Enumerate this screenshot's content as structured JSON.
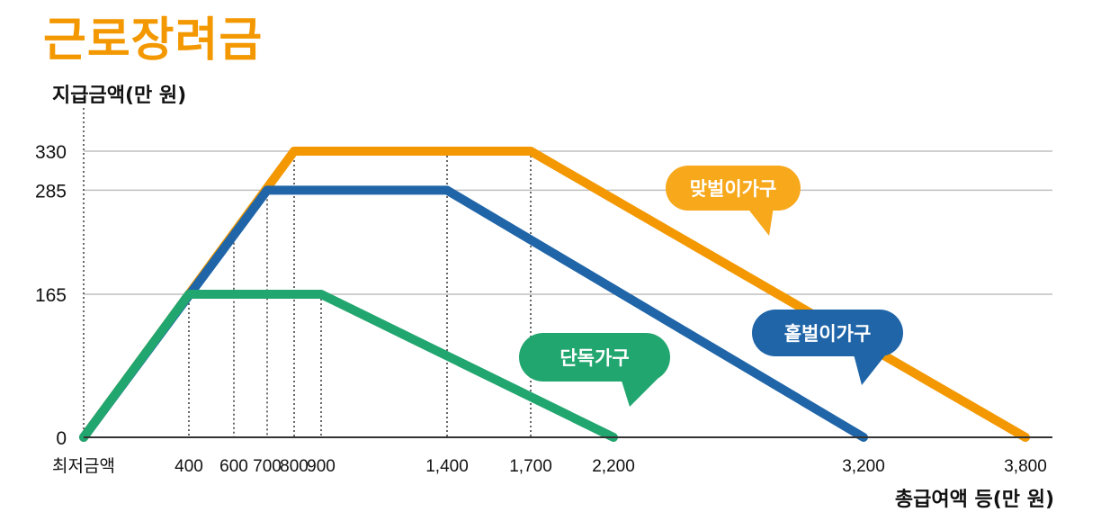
{
  "chart_data": {
    "type": "line",
    "title": "근로장려금",
    "ylabel": "지급금액(만 원)",
    "xlabel": "총급여액 등(만 원)",
    "x_tick_labels": [
      "최저금액",
      "400",
      "600",
      "700",
      "800",
      "900",
      "1,400",
      "1,700",
      "2,200",
      "3,200",
      "3,800"
    ],
    "y_ticks": [
      0,
      165,
      285,
      330
    ],
    "y_tick_labels": [
      "0",
      "165",
      "285",
      "330"
    ],
    "grid": true,
    "series": [
      {
        "name": "맞벌이가구",
        "color": "#f39800",
        "bubble_color": "#f7a81b",
        "points": [
          [
            0,
            0
          ],
          [
            800,
            330
          ],
          [
            1700,
            330
          ],
          [
            3800,
            0
          ]
        ]
      },
      {
        "name": "홑벌이가구",
        "color": "#1f65a8",
        "bubble_color": "#1f65a8",
        "points": [
          [
            0,
            0
          ],
          [
            700,
            285
          ],
          [
            1400,
            285
          ],
          [
            3200,
            0
          ]
        ]
      },
      {
        "name": "단독가구",
        "color": "#22a66f",
        "bubble_color": "#22a66f",
        "points": [
          [
            0,
            0
          ],
          [
            400,
            165
          ],
          [
            900,
            165
          ],
          [
            2200,
            0
          ]
        ]
      }
    ]
  }
}
